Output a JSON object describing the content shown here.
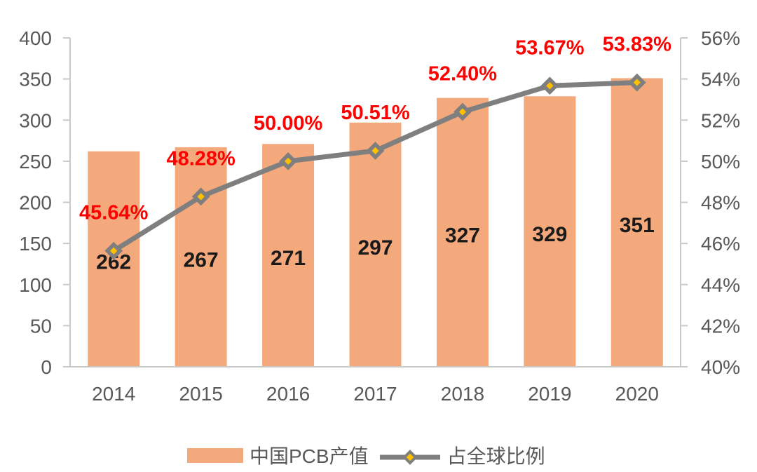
{
  "chart_data": {
    "type": "bar+line",
    "categories": [
      "2014",
      "2015",
      "2016",
      "2017",
      "2018",
      "2019",
      "2020"
    ],
    "series": [
      {
        "name": "中国PCB产值",
        "type": "bar",
        "axis": "left",
        "values": [
          262,
          267,
          271,
          297,
          327,
          329,
          351
        ],
        "data_labels": [
          "262",
          "267",
          "271",
          "297",
          "327",
          "329",
          "351"
        ],
        "color": "#F4A97C",
        "label_color": "#1A1A1A"
      },
      {
        "name": "占全球比例",
        "type": "line",
        "axis": "right",
        "values": [
          45.64,
          48.28,
          50.0,
          50.51,
          52.4,
          53.67,
          53.83
        ],
        "data_labels": [
          "45.64%",
          "48.28%",
          "50.00%",
          "50.51%",
          "52.40%",
          "53.67%",
          "53.83%"
        ],
        "color": "#7F7F7F",
        "marker_fill": "#FFC000",
        "marker_border": "#7F7F7F",
        "label_color": "#FF0000"
      }
    ],
    "left_axis": {
      "min": 0,
      "max": 400,
      "step": 50,
      "tick_labels": [
        "0",
        "50",
        "100",
        "150",
        "200",
        "250",
        "300",
        "350",
        "400"
      ]
    },
    "right_axis": {
      "min": 40,
      "max": 56,
      "step": 2,
      "tick_labels": [
        "40%",
        "42%",
        "44%",
        "46%",
        "48%",
        "50%",
        "52%",
        "54%",
        "56%"
      ]
    },
    "axis_text_color": "#595959",
    "axis_line_color": "#C9C9C9",
    "grid": false,
    "legend_position": "bottom"
  }
}
